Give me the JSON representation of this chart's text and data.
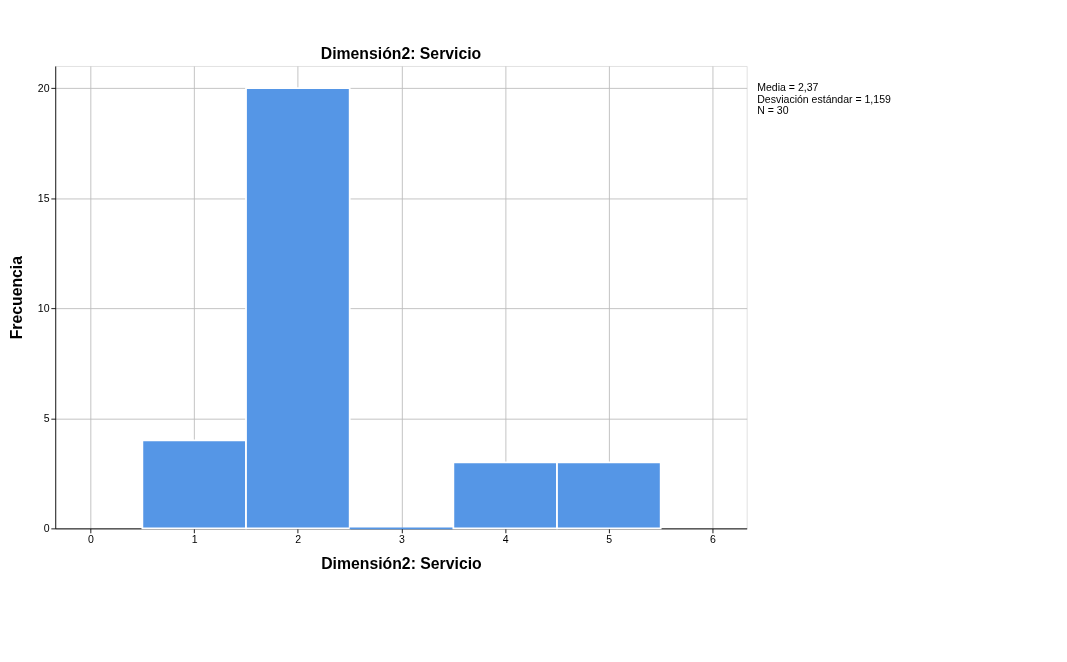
{
  "chart_data": {
    "type": "histogram",
    "title": "Dimensión2: Servicio",
    "xlabel": "Dimensión2: Servicio",
    "ylabel": "Frecuencia",
    "bins": [
      0.5,
      1.5,
      2.5,
      3.5,
      4.5,
      5.5
    ],
    "values": [
      4,
      20,
      0,
      3,
      3
    ],
    "color": "#5596e6",
    "xlim": [
      -0.34,
      6.33
    ],
    "xticks": [
      0,
      1,
      2,
      3,
      4,
      5,
      6
    ],
    "ylim": [
      0,
      21
    ],
    "yticks": [
      0,
      5,
      10,
      15,
      20
    ],
    "grid": true,
    "annotations": [
      "Media = 2,37",
      "Desviación estándar = 1,159",
      "N = 30"
    ]
  }
}
